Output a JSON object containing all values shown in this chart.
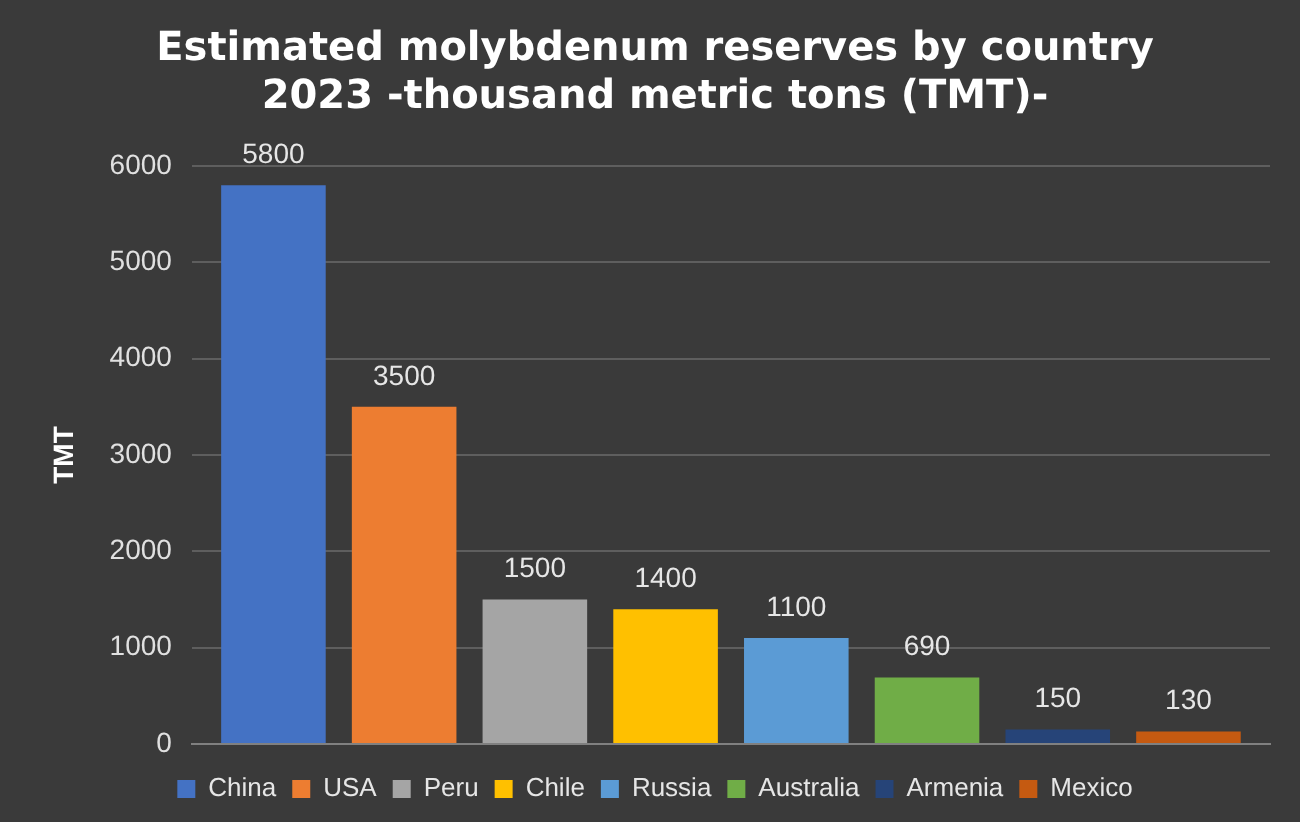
{
  "chart_data": {
    "type": "bar",
    "title": "Estimated molybdenum reserves by country\n2023 -thousand metric tons (TMT)-",
    "ylabel": "TMT",
    "categories": [
      null
    ],
    "series": [
      {
        "name": "China",
        "color": "#4472c4",
        "values": [
          5800
        ]
      },
      {
        "name": "USA",
        "color": "#ed7d31",
        "values": [
          3500
        ]
      },
      {
        "name": "Peru",
        "color": "#a5a5a5",
        "values": [
          1500
        ]
      },
      {
        "name": "Chile",
        "color": "#ffc000",
        "values": [
          1400
        ]
      },
      {
        "name": "Russia",
        "color": "#5b9bd5",
        "values": [
          1100
        ]
      },
      {
        "name": "Australia",
        "color": "#70ad47",
        "values": [
          690
        ]
      },
      {
        "name": "Armenia",
        "color": "#264478",
        "values": [
          150
        ]
      },
      {
        "name": "Mexico",
        "color": "#c55a11",
        "values": [
          130
        ]
      }
    ],
    "ylim": [
      0,
      6000
    ],
    "yticks": [
      0,
      1000,
      2000,
      3000,
      4000,
      5000,
      6000
    ],
    "grid": "y",
    "legend": "bottom",
    "data_labels": true,
    "tick_labels": "y"
  }
}
